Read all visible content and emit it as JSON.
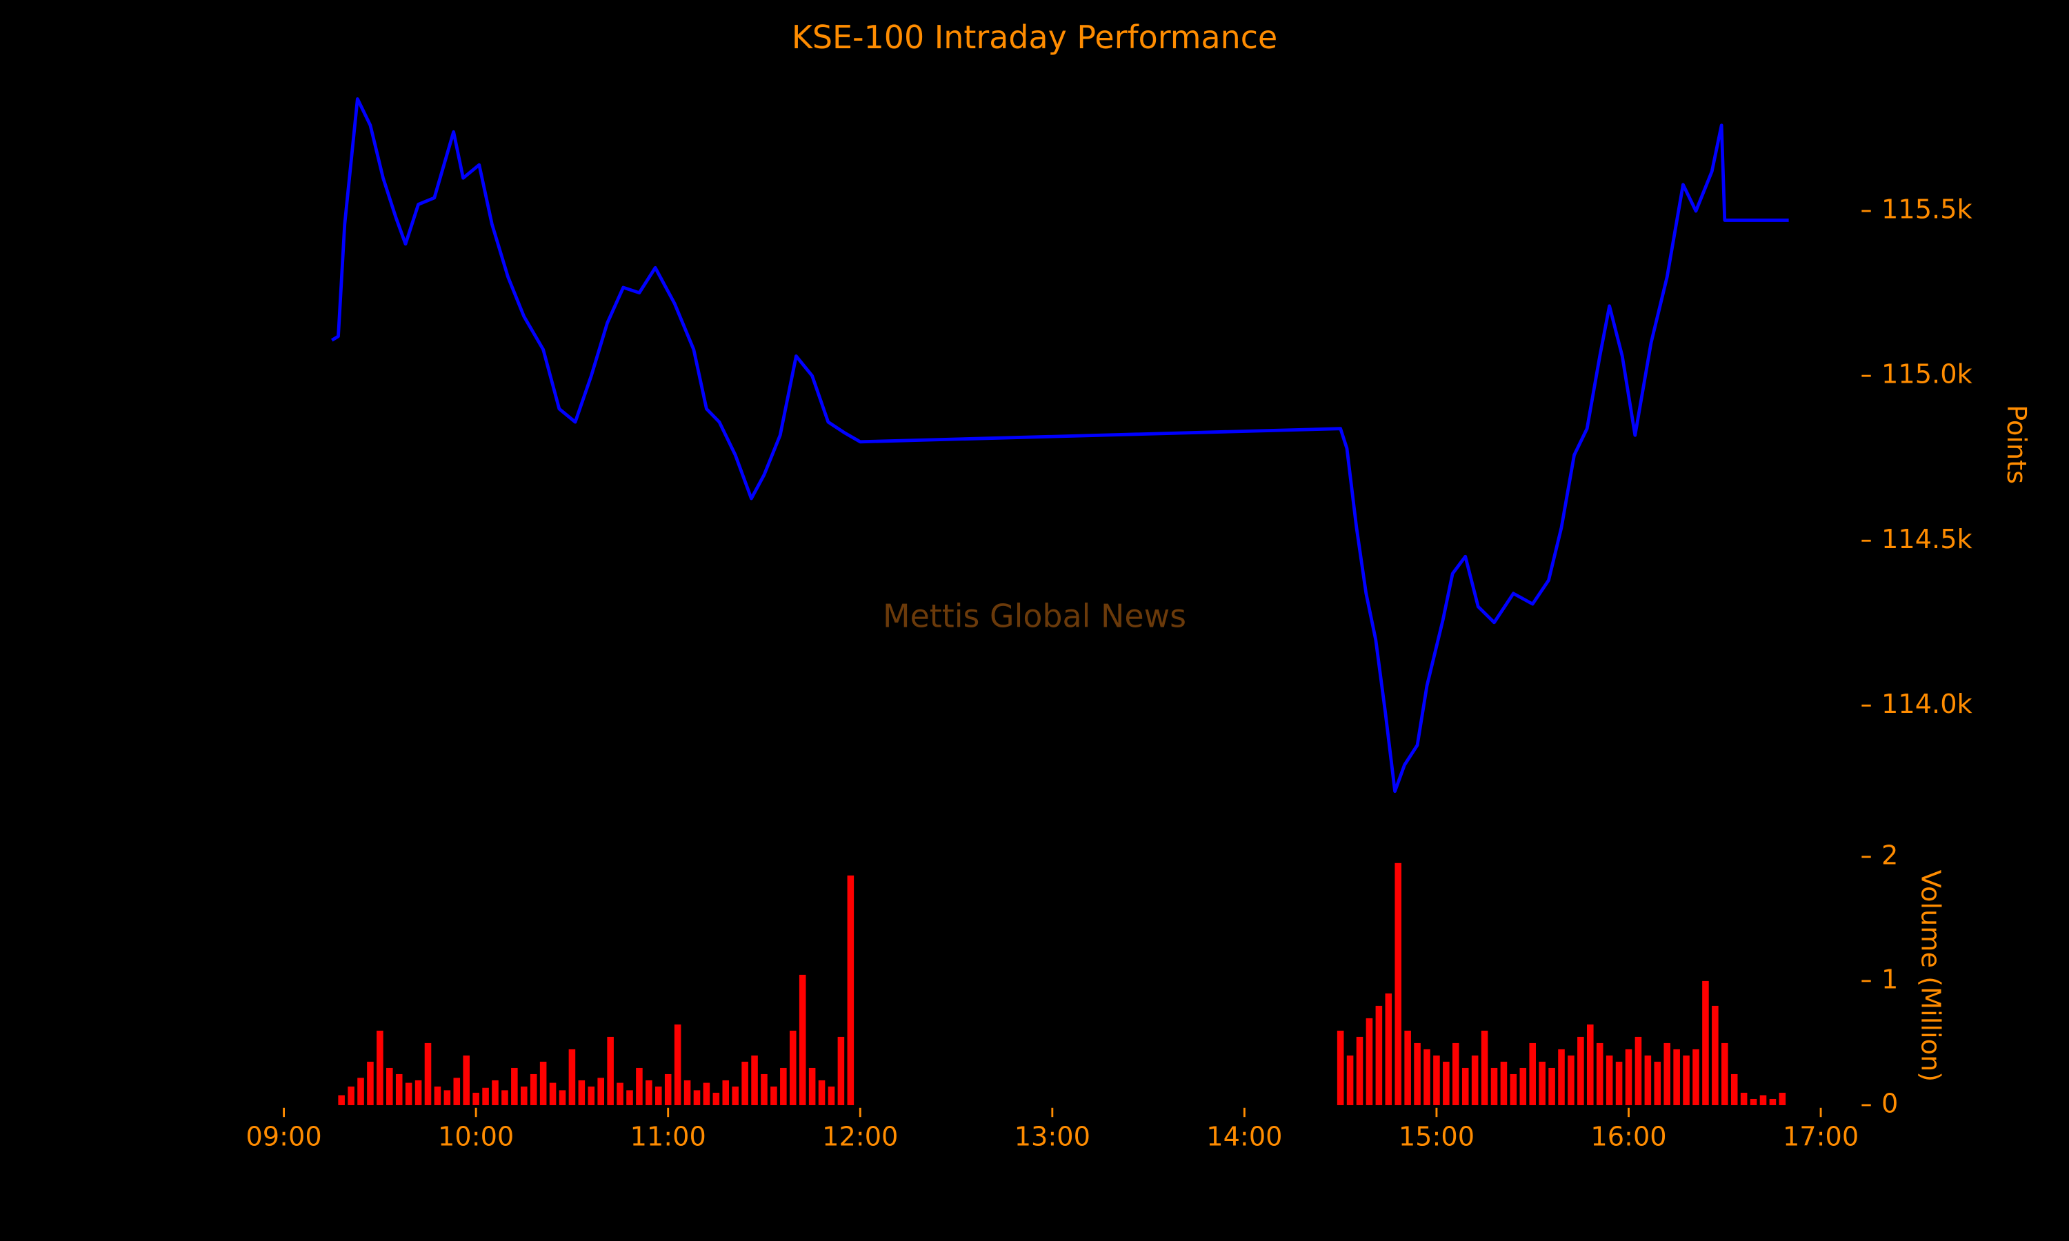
{
  "chart_data": [
    {
      "type": "line",
      "title": "KSE-100 Intraday Performance",
      "ylabel": "Points",
      "color": "#0000ff",
      "text_color": "#ff8c00",
      "annotation": "Mettis Global News",
      "annotation_color": "#6b3a0a",
      "xlim": [
        "09:00",
        "17:00"
      ],
      "ylim": [
        113650,
        115900
      ],
      "yticks": [
        {
          "value": 114000,
          "label": "114.0k"
        },
        {
          "value": 114500,
          "label": "114.5k"
        },
        {
          "value": 115000,
          "label": "115.0k"
        },
        {
          "value": 115500,
          "label": "115.5k"
        }
      ],
      "x": [
        "09:15",
        "09:17",
        "09:19",
        "09:23",
        "09:27",
        "09:31",
        "09:35",
        "09:38",
        "09:42",
        "09:47",
        "09:53",
        "09:56",
        "10:01",
        "10:05",
        "10:10",
        "10:15",
        "10:21",
        "10:26",
        "10:31",
        "10:36",
        "10:41",
        "10:46",
        "10:51",
        "10:56",
        "11:02",
        "11:08",
        "11:12",
        "11:16",
        "11:21",
        "11:26",
        "11:30",
        "11:35",
        "11:40",
        "11:45",
        "11:50",
        "11:55",
        "12:00",
        "14:30",
        "14:32",
        "14:35",
        "14:38",
        "14:41",
        "14:44",
        "14:47",
        "14:50",
        "14:54",
        "14:57",
        "15:02",
        "15:05",
        "15:09",
        "15:13",
        "15:18",
        "15:24",
        "15:30",
        "15:35",
        "15:39",
        "15:43",
        "15:47",
        "15:51",
        "15:54",
        "15:58",
        "16:02",
        "16:07",
        "16:12",
        "16:17",
        "16:21",
        "16:26",
        "16:29",
        "16:30",
        "16:50"
      ],
      "values": [
        115108,
        115120,
        115460,
        115840,
        115760,
        115600,
        115480,
        115400,
        115520,
        115540,
        115740,
        115600,
        115640,
        115460,
        115300,
        115180,
        115080,
        114900,
        114860,
        115000,
        115160,
        115268,
        115252,
        115328,
        115220,
        115080,
        114900,
        114860,
        114760,
        114628,
        114700,
        114820,
        115060,
        115000,
        114860,
        114828,
        114800,
        114840,
        114780,
        114540,
        114340,
        114200,
        113980,
        113740,
        113820,
        113880,
        114060,
        114260,
        114400,
        114452,
        114300,
        114252,
        114340,
        114308,
        114380,
        114540,
        114760,
        114840,
        115060,
        115212,
        115060,
        114820,
        115100,
        115300,
        115580,
        115500,
        115620,
        115760,
        115472,
        115472
      ]
    },
    {
      "type": "bar",
      "ylabel": "Volume (Million)",
      "color": "#ff0000",
      "text_color": "#ff8c00",
      "xlim": [
        "09:00",
        "17:00"
      ],
      "xticks": [
        "09:00",
        "10:00",
        "11:00",
        "12:00",
        "13:00",
        "14:00",
        "15:00",
        "16:00",
        "17:00"
      ],
      "ylim": [
        0,
        2.05
      ],
      "yticks": [
        0,
        1,
        2
      ],
      "x": [
        "09:18",
        "09:21",
        "09:24",
        "09:27",
        "09:30",
        "09:33",
        "09:36",
        "09:39",
        "09:42",
        "09:45",
        "09:48",
        "09:51",
        "09:54",
        "09:57",
        "10:00",
        "10:03",
        "10:06",
        "10:09",
        "10:12",
        "10:15",
        "10:18",
        "10:21",
        "10:24",
        "10:27",
        "10:30",
        "10:33",
        "10:36",
        "10:39",
        "10:42",
        "10:45",
        "10:48",
        "10:51",
        "10:54",
        "10:57",
        "11:00",
        "11:03",
        "11:06",
        "11:09",
        "11:12",
        "11:15",
        "11:18",
        "11:21",
        "11:24",
        "11:27",
        "11:30",
        "11:33",
        "11:36",
        "11:39",
        "11:42",
        "11:45",
        "11:48",
        "11:51",
        "11:54",
        "11:57",
        "14:30",
        "14:33",
        "14:36",
        "14:39",
        "14:42",
        "14:45",
        "14:48",
        "14:51",
        "14:54",
        "14:57",
        "15:00",
        "15:03",
        "15:06",
        "15:09",
        "15:12",
        "15:15",
        "15:18",
        "15:21",
        "15:24",
        "15:27",
        "15:30",
        "15:33",
        "15:36",
        "15:39",
        "15:42",
        "15:45",
        "15:48",
        "15:51",
        "15:54",
        "15:57",
        "16:00",
        "16:03",
        "16:06",
        "16:09",
        "16:12",
        "16:15",
        "16:18",
        "16:21",
        "16:24",
        "16:27",
        "16:30",
        "16:33",
        "16:36",
        "16:39",
        "16:42",
        "16:45",
        "16:48"
      ],
      "values": [
        0.08,
        0.15,
        0.22,
        0.35,
        0.6,
        0.3,
        0.25,
        0.18,
        0.2,
        0.5,
        0.15,
        0.12,
        0.22,
        0.4,
        0.1,
        0.14,
        0.2,
        0.12,
        0.3,
        0.15,
        0.25,
        0.35,
        0.18,
        0.12,
        0.45,
        0.2,
        0.15,
        0.22,
        0.55,
        0.18,
        0.12,
        0.3,
        0.2,
        0.15,
        0.25,
        0.65,
        0.2,
        0.12,
        0.18,
        0.1,
        0.2,
        0.15,
        0.35,
        0.4,
        0.25,
        0.15,
        0.3,
        0.6,
        1.05,
        0.3,
        0.2,
        0.15,
        0.55,
        1.85,
        0.6,
        0.4,
        0.55,
        0.7,
        0.8,
        0.9,
        1.95,
        0.6,
        0.5,
        0.45,
        0.4,
        0.35,
        0.5,
        0.3,
        0.4,
        0.6,
        0.3,
        0.35,
        0.25,
        0.3,
        0.5,
        0.35,
        0.3,
        0.45,
        0.4,
        0.55,
        0.65,
        0.5,
        0.4,
        0.35,
        0.45,
        0.55,
        0.4,
        0.35,
        0.5,
        0.45,
        0.4,
        0.45,
        1.0,
        0.8,
        0.5,
        0.25,
        0.1,
        0.05,
        0.08,
        0.05,
        0.1
      ]
    }
  ]
}
